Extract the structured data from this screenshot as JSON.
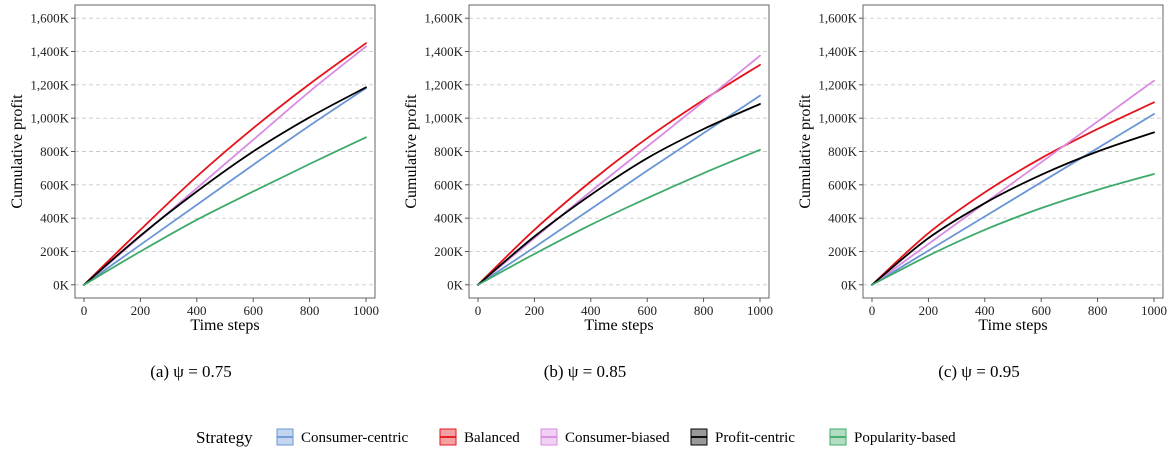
{
  "chart_data": [
    {
      "type": "line",
      "caption": "(a) ψ = 0.75",
      "xlabel": "Time steps",
      "ylabel": "Cumulative profit",
      "xlim": [
        0,
        1000
      ],
      "ylim": [
        0,
        1600
      ],
      "x_ticks": [
        0,
        200,
        400,
        600,
        800,
        1000
      ],
      "y_ticks": [
        0,
        200,
        400,
        600,
        800,
        1000,
        1200,
        1400,
        1600
      ],
      "y_tick_labels": [
        "0K",
        "200K",
        "400K",
        "600K",
        "800K",
        "1,000K",
        "1,200K",
        "1,400K",
        "1,600K"
      ],
      "grid": "horizontal dashed",
      "x": [
        0,
        200,
        400,
        600,
        800,
        1000
      ],
      "series": [
        {
          "name": "Consumer-centric",
          "values": [
            0,
            240,
            480,
            720,
            955,
            1180
          ]
        },
        {
          "name": "Balanced",
          "values": [
            0,
            330,
            650,
            940,
            1205,
            1450
          ]
        },
        {
          "name": "Consumer-biased",
          "values": [
            0,
            290,
            580,
            870,
            1160,
            1430
          ]
        },
        {
          "name": "Profit-centric",
          "values": [
            0,
            295,
            560,
            800,
            1005,
            1185
          ]
        },
        {
          "name": "Popularity-based",
          "values": [
            0,
            200,
            390,
            560,
            725,
            885
          ]
        }
      ]
    },
    {
      "type": "line",
      "caption": "(b) ψ = 0.85",
      "xlabel": "Time steps",
      "ylabel": "Cumulative profit",
      "xlim": [
        0,
        1000
      ],
      "ylim": [
        0,
        1600
      ],
      "x_ticks": [
        0,
        200,
        400,
        600,
        800,
        1000
      ],
      "y_ticks": [
        0,
        200,
        400,
        600,
        800,
        1000,
        1200,
        1400,
        1600
      ],
      "y_tick_labels": [
        "0K",
        "200K",
        "400K",
        "600K",
        "800K",
        "1,000K",
        "1,200K",
        "1,400K",
        "1,600K"
      ],
      "grid": "horizontal dashed",
      "x": [
        0,
        200,
        400,
        600,
        800,
        1000
      ],
      "series": [
        {
          "name": "Consumer-centric",
          "values": [
            0,
            225,
            455,
            685,
            910,
            1135
          ]
        },
        {
          "name": "Balanced",
          "values": [
            0,
            330,
            620,
            880,
            1110,
            1320
          ]
        },
        {
          "name": "Consumer-biased",
          "values": [
            0,
            280,
            560,
            830,
            1100,
            1375
          ]
        },
        {
          "name": "Profit-centric",
          "values": [
            0,
            290,
            540,
            760,
            935,
            1085
          ]
        },
        {
          "name": "Popularity-based",
          "values": [
            0,
            185,
            360,
            520,
            670,
            810
          ]
        }
      ]
    },
    {
      "type": "line",
      "caption": "(c) ψ = 0.95",
      "xlabel": "Time steps",
      "ylabel": "Cumulative profit",
      "xlim": [
        0,
        1000
      ],
      "ylim": [
        0,
        1600
      ],
      "x_ticks": [
        0,
        200,
        400,
        600,
        800,
        1000
      ],
      "y_ticks": [
        0,
        200,
        400,
        600,
        800,
        1000,
        1200,
        1400,
        1600
      ],
      "y_tick_labels": [
        "0K",
        "200K",
        "400K",
        "600K",
        "800K",
        "1,000K",
        "1,200K",
        "1,400K",
        "1,600K"
      ],
      "grid": "horizontal dashed",
      "x": [
        0,
        200,
        400,
        600,
        800,
        1000
      ],
      "series": [
        {
          "name": "Consumer-centric",
          "values": [
            0,
            205,
            410,
            615,
            820,
            1025
          ]
        },
        {
          "name": "Balanced",
          "values": [
            0,
            310,
            555,
            760,
            935,
            1095
          ]
        },
        {
          "name": "Consumer-biased",
          "values": [
            0,
            245,
            490,
            735,
            980,
            1225
          ]
        },
        {
          "name": "Profit-centric",
          "values": [
            0,
            280,
            490,
            660,
            800,
            915
          ]
        },
        {
          "name": "Popularity-based",
          "values": [
            0,
            175,
            330,
            460,
            570,
            665
          ]
        }
      ]
    }
  ],
  "legend": {
    "title": "Strategy",
    "position": "bottom",
    "items": [
      {
        "name": "Consumer-centric",
        "color": "#6b96d6"
      },
      {
        "name": "Balanced",
        "color": "#e5141c"
      },
      {
        "name": "Consumer-biased",
        "color": "#d98be2"
      },
      {
        "name": "Profit-centric",
        "color": "#000000"
      },
      {
        "name": "Popularity-based",
        "color": "#3eaa6a"
      }
    ]
  }
}
